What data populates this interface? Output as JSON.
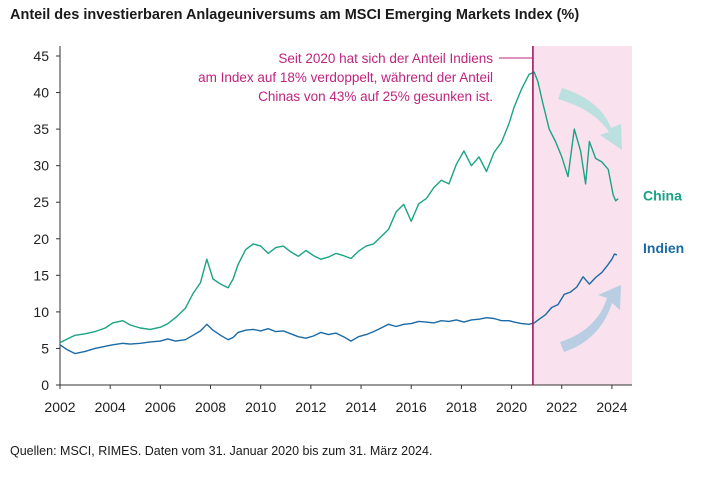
{
  "title": "Anteil des investierbaren Anlageuniversums am MSCI Emerging Markets Index (%)",
  "source": "Quellen: MSCI, RIMES. Daten vom 31. Januar 2020 bis zum 31. März 2024.",
  "colors": {
    "china": "#1aa385",
    "india": "#1b6aa5",
    "highlight_fill": "#f9e1ee",
    "highlight_line": "#a3175f",
    "annotation": "#c0247e",
    "arrow_china": "#b8dede",
    "arrow_india": "#b6cce2"
  },
  "chart_data": {
    "type": "line",
    "title": "Anteil des investierbaren Anlageuniversums am MSCI Emerging Markets Index (%)",
    "xlabel": "",
    "ylabel": "",
    "xlim": [
      2002,
      2024.8
    ],
    "ylim": [
      0,
      45
    ],
    "x_ticks": [
      2002,
      2004,
      2006,
      2008,
      2010,
      2012,
      2014,
      2016,
      2018,
      2020,
      2022,
      2024
    ],
    "y_ticks": [
      0,
      5,
      10,
      15,
      20,
      25,
      30,
      35,
      40,
      45
    ],
    "highlight_start_x": 2020.85,
    "highlight_end_x": 2024.8,
    "annotation_lines": [
      "Seit 2020 hat sich der Anteil Indiens",
      "am Index auf 18% verdoppelt, während der Anteil",
      "Chinas von 43% auf 25% gesunken ist."
    ],
    "series": [
      {
        "name": "China",
        "label": "China",
        "points": [
          [
            2002.0,
            5.8
          ],
          [
            2002.3,
            6.3
          ],
          [
            2002.6,
            6.8
          ],
          [
            2003.0,
            7.0
          ],
          [
            2003.4,
            7.3
          ],
          [
            2003.8,
            7.8
          ],
          [
            2004.1,
            8.5
          ],
          [
            2004.5,
            8.8
          ],
          [
            2004.8,
            8.2
          ],
          [
            2005.2,
            7.8
          ],
          [
            2005.6,
            7.6
          ],
          [
            2006.0,
            7.9
          ],
          [
            2006.3,
            8.4
          ],
          [
            2006.6,
            9.2
          ],
          [
            2007.0,
            10.5
          ],
          [
            2007.3,
            12.5
          ],
          [
            2007.6,
            14.0
          ],
          [
            2007.85,
            17.2
          ],
          [
            2008.1,
            14.5
          ],
          [
            2008.4,
            13.8
          ],
          [
            2008.7,
            13.3
          ],
          [
            2008.9,
            14.5
          ],
          [
            2009.1,
            16.5
          ],
          [
            2009.4,
            18.5
          ],
          [
            2009.7,
            19.3
          ],
          [
            2010.0,
            19.0
          ],
          [
            2010.3,
            18.0
          ],
          [
            2010.6,
            18.8
          ],
          [
            2010.9,
            19.0
          ],
          [
            2011.2,
            18.2
          ],
          [
            2011.5,
            17.6
          ],
          [
            2011.8,
            18.4
          ],
          [
            2012.1,
            17.7
          ],
          [
            2012.4,
            17.2
          ],
          [
            2012.7,
            17.5
          ],
          [
            2013.0,
            18.0
          ],
          [
            2013.3,
            17.7
          ],
          [
            2013.6,
            17.3
          ],
          [
            2013.9,
            18.3
          ],
          [
            2014.2,
            19.0
          ],
          [
            2014.5,
            19.3
          ],
          [
            2014.8,
            20.3
          ],
          [
            2015.1,
            21.3
          ],
          [
            2015.4,
            23.7
          ],
          [
            2015.7,
            24.7
          ],
          [
            2016.0,
            22.4
          ],
          [
            2016.3,
            24.8
          ],
          [
            2016.6,
            25.5
          ],
          [
            2016.9,
            27.0
          ],
          [
            2017.2,
            28.0
          ],
          [
            2017.5,
            27.5
          ],
          [
            2017.8,
            30.2
          ],
          [
            2018.1,
            32.0
          ],
          [
            2018.4,
            30.0
          ],
          [
            2018.7,
            31.2
          ],
          [
            2019.0,
            29.2
          ],
          [
            2019.3,
            31.8
          ],
          [
            2019.6,
            33.2
          ],
          [
            2019.9,
            35.8
          ],
          [
            2020.1,
            38.0
          ],
          [
            2020.4,
            40.5
          ],
          [
            2020.7,
            42.5
          ],
          [
            2020.9,
            42.8
          ],
          [
            2021.05,
            41.5
          ],
          [
            2021.25,
            38.5
          ],
          [
            2021.5,
            35.0
          ],
          [
            2021.75,
            33.3
          ],
          [
            2022.0,
            31.2
          ],
          [
            2022.25,
            28.5
          ],
          [
            2022.5,
            35.0
          ],
          [
            2022.75,
            32.0
          ],
          [
            2022.95,
            27.5
          ],
          [
            2023.1,
            33.3
          ],
          [
            2023.35,
            31.0
          ],
          [
            2023.6,
            30.5
          ],
          [
            2023.85,
            29.5
          ],
          [
            2024.05,
            26.0
          ],
          [
            2024.15,
            25.2
          ],
          [
            2024.25,
            25.5
          ]
        ]
      },
      {
        "name": "India",
        "label": "Indien",
        "points": [
          [
            2002.0,
            5.5
          ],
          [
            2002.3,
            4.8
          ],
          [
            2002.6,
            4.3
          ],
          [
            2003.0,
            4.6
          ],
          [
            2003.4,
            5.0
          ],
          [
            2003.8,
            5.3
          ],
          [
            2004.1,
            5.5
          ],
          [
            2004.5,
            5.7
          ],
          [
            2004.8,
            5.6
          ],
          [
            2005.2,
            5.7
          ],
          [
            2005.6,
            5.9
          ],
          [
            2006.0,
            6.0
          ],
          [
            2006.3,
            6.3
          ],
          [
            2006.6,
            6.0
          ],
          [
            2007.0,
            6.2
          ],
          [
            2007.3,
            6.8
          ],
          [
            2007.6,
            7.4
          ],
          [
            2007.85,
            8.3
          ],
          [
            2008.1,
            7.5
          ],
          [
            2008.4,
            6.8
          ],
          [
            2008.7,
            6.2
          ],
          [
            2008.9,
            6.5
          ],
          [
            2009.1,
            7.2
          ],
          [
            2009.4,
            7.5
          ],
          [
            2009.7,
            7.6
          ],
          [
            2010.0,
            7.4
          ],
          [
            2010.3,
            7.7
          ],
          [
            2010.6,
            7.3
          ],
          [
            2010.9,
            7.4
          ],
          [
            2011.2,
            7.0
          ],
          [
            2011.5,
            6.6
          ],
          [
            2011.8,
            6.4
          ],
          [
            2012.1,
            6.7
          ],
          [
            2012.4,
            7.2
          ],
          [
            2012.7,
            6.9
          ],
          [
            2013.0,
            7.1
          ],
          [
            2013.3,
            6.6
          ],
          [
            2013.6,
            6.0
          ],
          [
            2013.9,
            6.6
          ],
          [
            2014.2,
            6.9
          ],
          [
            2014.5,
            7.3
          ],
          [
            2014.8,
            7.8
          ],
          [
            2015.1,
            8.3
          ],
          [
            2015.4,
            8.0
          ],
          [
            2015.7,
            8.3
          ],
          [
            2016.0,
            8.4
          ],
          [
            2016.3,
            8.7
          ],
          [
            2016.6,
            8.6
          ],
          [
            2016.9,
            8.5
          ],
          [
            2017.2,
            8.8
          ],
          [
            2017.5,
            8.7
          ],
          [
            2017.8,
            8.9
          ],
          [
            2018.1,
            8.6
          ],
          [
            2018.4,
            8.9
          ],
          [
            2018.7,
            9.0
          ],
          [
            2019.0,
            9.2
          ],
          [
            2019.3,
            9.1
          ],
          [
            2019.6,
            8.8
          ],
          [
            2019.9,
            8.8
          ],
          [
            2020.1,
            8.6
          ],
          [
            2020.4,
            8.4
          ],
          [
            2020.7,
            8.3
          ],
          [
            2020.9,
            8.5
          ],
          [
            2021.1,
            9.0
          ],
          [
            2021.35,
            9.6
          ],
          [
            2021.6,
            10.6
          ],
          [
            2021.85,
            11.0
          ],
          [
            2022.1,
            12.4
          ],
          [
            2022.35,
            12.7
          ],
          [
            2022.6,
            13.4
          ],
          [
            2022.85,
            14.8
          ],
          [
            2023.1,
            13.8
          ],
          [
            2023.35,
            14.7
          ],
          [
            2023.6,
            15.4
          ],
          [
            2023.85,
            16.5
          ],
          [
            2024.0,
            17.2
          ],
          [
            2024.1,
            17.9
          ],
          [
            2024.2,
            17.8
          ]
        ]
      }
    ]
  }
}
